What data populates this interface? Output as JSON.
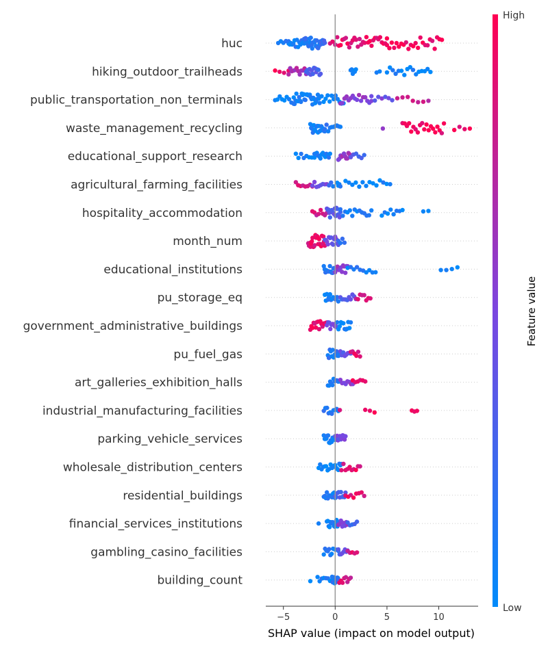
{
  "chart_data": {
    "type": "scatter",
    "subtype": "shap-beeswarm-summary",
    "xlabel": "SHAP value (impact on model output)",
    "xlim": [
      -6.7,
      13.8
    ],
    "xticks": [
      -5,
      0,
      5,
      10
    ],
    "colorbar": {
      "label": "Feature value",
      "high_label": "High",
      "low_label": "Low",
      "low_color": "#008bfb",
      "high_color": "#ff0052"
    },
    "zero_line_color": "#999999",
    "features": [
      {
        "name": "huc",
        "segments": [
          [
            -5.5,
            -4.5,
            0.1,
            5
          ],
          [
            -4.5,
            -3.0,
            0.1,
            14
          ],
          [
            -3.0,
            -1.5,
            0.15,
            22
          ],
          [
            -1.5,
            -1.0,
            0.2,
            8
          ],
          [
            -0.5,
            0,
            0.85,
            3
          ],
          [
            0.2,
            5,
            0.92,
            30
          ],
          [
            5,
            10.3,
            0.95,
            24
          ]
        ]
      },
      {
        "name": "hiking_outdoor_trailheads",
        "segments": [
          [
            -5.8,
            -4.5,
            0.95,
            4
          ],
          [
            -4.5,
            -2.8,
            0.7,
            12
          ],
          [
            -2.8,
            -1.4,
            0.3,
            14
          ],
          [
            1.5,
            2.0,
            0.05,
            6
          ],
          [
            4.0,
            4.3,
            0.05,
            2
          ],
          [
            5.0,
            9.2,
            0.05,
            16
          ]
        ]
      },
      {
        "name": "public_transportation_non_terminals",
        "segments": [
          [
            -5.8,
            -4.0,
            0.05,
            9
          ],
          [
            -4.0,
            -1.5,
            0.08,
            30
          ],
          [
            -1.5,
            1.0,
            0.05,
            14
          ],
          [
            0.5,
            3.5,
            0.55,
            16
          ],
          [
            3.5,
            5.5,
            0.45,
            7
          ],
          [
            6.0,
            9.0,
            0.8,
            7
          ]
        ]
      },
      {
        "name": "waste_management_recycling",
        "segments": [
          [
            -2.4,
            -1.0,
            0.08,
            18
          ],
          [
            -1.0,
            0.5,
            0.15,
            10
          ],
          [
            4.5,
            4.7,
            0.65,
            1
          ],
          [
            6.5,
            10.5,
            0.95,
            20
          ],
          [
            11.5,
            13.0,
            0.95,
            4
          ]
        ]
      },
      {
        "name": "educational_support_research",
        "segments": [
          [
            -3.8,
            -2.0,
            0.08,
            8
          ],
          [
            -2.0,
            -0.5,
            0.1,
            14
          ],
          [
            0.3,
            1.5,
            0.6,
            12
          ],
          [
            1.5,
            2.8,
            0.3,
            6
          ]
        ]
      },
      {
        "name": "agricultural_farming_facilities",
        "segments": [
          [
            -3.8,
            -2.2,
            0.85,
            8
          ],
          [
            -2.2,
            -0.8,
            0.45,
            8
          ],
          [
            -0.6,
            -0.2,
            0.15,
            3
          ],
          [
            0.2,
            0.5,
            0.1,
            4
          ],
          [
            1.0,
            5.3,
            0.05,
            14
          ]
        ]
      },
      {
        "name": "hospitality_accommodation",
        "segments": [
          [
            -2.2,
            -0.8,
            0.8,
            8
          ],
          [
            -0.8,
            0.5,
            0.35,
            18
          ],
          [
            0.5,
            3.5,
            0.08,
            14
          ],
          [
            4.5,
            6.5,
            0.05,
            8
          ],
          [
            8.5,
            9.0,
            0.05,
            2
          ]
        ]
      },
      {
        "name": "month_num",
        "segments": [
          [
            -2.6,
            -1.0,
            0.9,
            24
          ],
          [
            -1.0,
            0.3,
            0.45,
            14
          ],
          [
            0.3,
            0.9,
            0.15,
            4
          ]
        ]
      },
      {
        "name": "educational_institutions",
        "segments": [
          [
            -1.1,
            0.0,
            0.15,
            14
          ],
          [
            0.0,
            1.2,
            0.6,
            12
          ],
          [
            1.2,
            3.9,
            0.1,
            10
          ],
          [
            10.2,
            11.8,
            0.05,
            4
          ]
        ]
      },
      {
        "name": "pu_storage_eq",
        "segments": [
          [
            -1.0,
            0.3,
            0.1,
            14
          ],
          [
            0.5,
            2.0,
            0.35,
            10
          ],
          [
            2.0,
            3.4,
            0.85,
            8
          ]
        ]
      },
      {
        "name": "government_administrative_buildings",
        "segments": [
          [
            -2.4,
            -0.8,
            0.9,
            16
          ],
          [
            -0.8,
            0.2,
            0.5,
            10
          ],
          [
            0.2,
            1.5,
            0.05,
            12
          ]
        ]
      },
      {
        "name": "pu_fuel_gas",
        "segments": [
          [
            -0.7,
            0.5,
            0.15,
            14
          ],
          [
            0.5,
            1.5,
            0.4,
            8
          ],
          [
            1.5,
            2.4,
            0.9,
            6
          ]
        ]
      },
      {
        "name": "art_galleries_exhibition_halls",
        "segments": [
          [
            -0.7,
            0.5,
            0.15,
            12
          ],
          [
            0.5,
            1.7,
            0.55,
            8
          ],
          [
            1.7,
            2.9,
            0.9,
            6
          ]
        ]
      },
      {
        "name": "industrial_manufacturing_facilities",
        "segments": [
          [
            -1.1,
            0.3,
            0.15,
            10
          ],
          [
            0.4,
            0.5,
            0.9,
            1
          ],
          [
            2.9,
            3.8,
            0.95,
            3
          ],
          [
            7.4,
            7.9,
            0.95,
            3
          ]
        ]
      },
      {
        "name": "parking_vehicle_services",
        "segments": [
          [
            -1.1,
            0,
            0.1,
            14
          ],
          [
            0,
            1.0,
            0.45,
            12
          ]
        ]
      },
      {
        "name": "wholesale_distribution_centers",
        "segments": [
          [
            -1.6,
            -0.3,
            0.05,
            10
          ],
          [
            -0.3,
            0.6,
            0.1,
            10
          ],
          [
            0.6,
            2.4,
            0.9,
            10
          ]
        ]
      },
      {
        "name": "residential_buildings",
        "segments": [
          [
            -1.1,
            0,
            0.1,
            12
          ],
          [
            0,
            1.0,
            0.3,
            10
          ],
          [
            1.0,
            2.8,
            0.9,
            8
          ]
        ]
      },
      {
        "name": "financial_services_institutions",
        "segments": [
          [
            -1.7,
            -1.5,
            0.05,
            1
          ],
          [
            -0.8,
            0.3,
            0.1,
            14
          ],
          [
            0.3,
            1.2,
            0.55,
            8
          ],
          [
            1.2,
            2.1,
            0.2,
            5
          ]
        ]
      },
      {
        "name": "gambling_casino_facilities",
        "segments": [
          [
            -1.1,
            0.3,
            0.1,
            12
          ],
          [
            0.3,
            1.2,
            0.35,
            8
          ],
          [
            1.2,
            2.1,
            0.85,
            5
          ]
        ]
      },
      {
        "name": "building_count",
        "segments": [
          [
            -2.5,
            -2.3,
            0.05,
            1
          ],
          [
            -1.7,
            -0.3,
            0.08,
            8
          ],
          [
            -0.3,
            0.4,
            0.15,
            12
          ],
          [
            0.4,
            1.5,
            0.85,
            8
          ]
        ]
      }
    ]
  }
}
